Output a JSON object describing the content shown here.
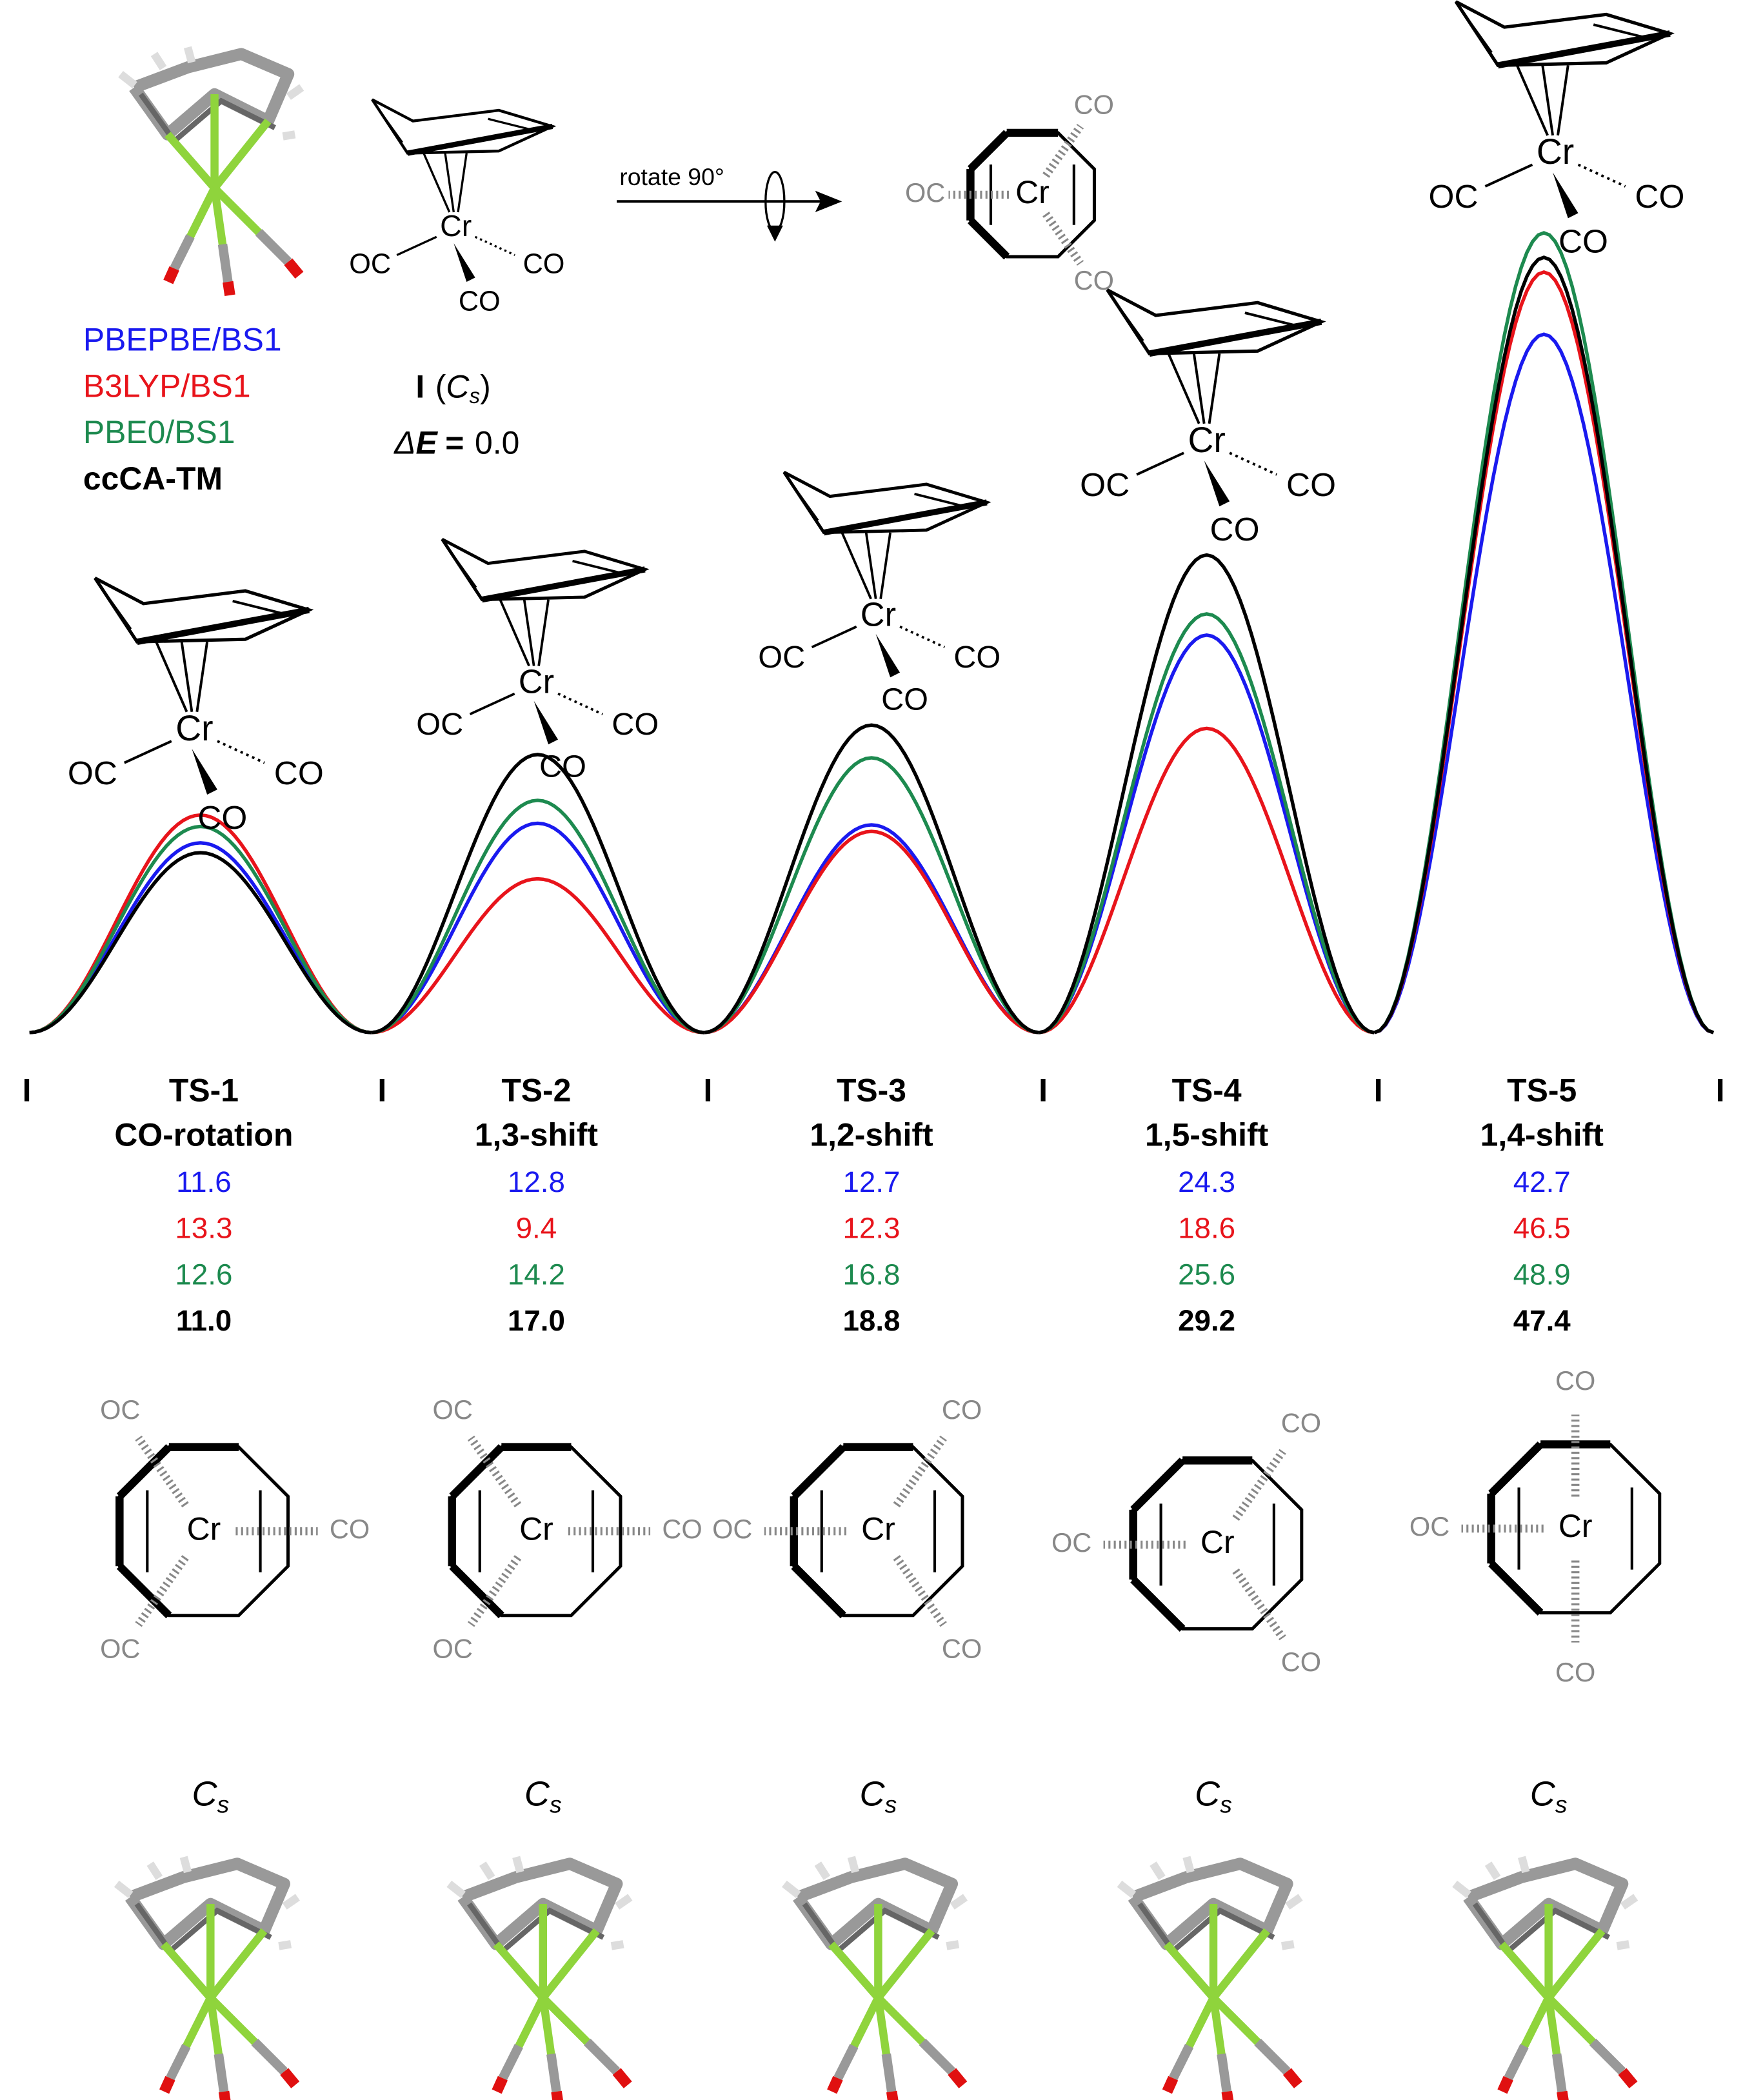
{
  "chart_data": {
    "type": "energy-profile",
    "categories": [
      "TS-1",
      "TS-2",
      "TS-3",
      "TS-4",
      "TS-5"
    ],
    "descriptions": [
      "CO-rotation",
      "1,3-shift",
      "1,2-shift",
      "1,5-shift",
      "1,4-shift"
    ],
    "minimum_label": "I",
    "series": [
      {
        "name": "PBEPBE/BS1",
        "color": "#1a1aef",
        "values": [
          11.6,
          12.8,
          12.7,
          24.3,
          42.7
        ]
      },
      {
        "name": "B3LYP/BS1",
        "color": "#e8141b",
        "values": [
          13.3,
          9.4,
          12.3,
          18.6,
          46.5
        ]
      },
      {
        "name": "PBE0/BS1",
        "color": "#1d8a4f",
        "values": [
          12.6,
          14.2,
          16.8,
          25.6,
          48.9
        ]
      },
      {
        "name": "ccCA-TM",
        "color": "#000000",
        "values": [
          11.0,
          17.0,
          18.8,
          29.2,
          47.4
        ],
        "value_labels": [
          "11.0",
          "17.0",
          "18.8",
          "29.2",
          "47.4"
        ]
      }
    ],
    "ylim": [
      0,
      60
    ]
  },
  "reference": {
    "name": "I",
    "bracket_open": "(",
    "bracket_close": ")",
    "energy_symbol": "Δ",
    "energy_variable": "E",
    "equals": "=",
    "energy": {
      "value": 0,
      "label": "0.0"
    }
  },
  "point_group": {
    "symbol": "C",
    "subscript": "s"
  },
  "rotation_label": "rotate 90°",
  "atom_labels": {
    "metal": "Cr",
    "carbonyl": "CO",
    "carbonyl_reversed": "OC"
  }
}
